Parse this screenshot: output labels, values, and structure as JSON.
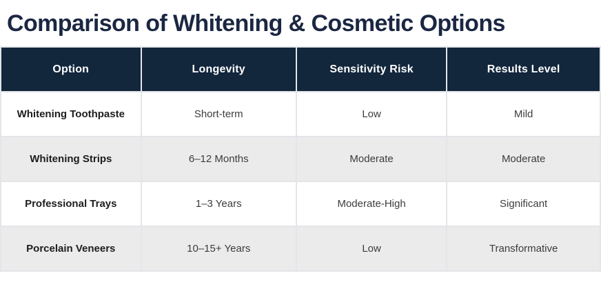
{
  "page": {
    "title": "Comparison of Whitening & Cosmetic Options"
  },
  "colors": {
    "title_text": "#1B2742",
    "header_bg": "#12263C",
    "header_text": "#FFFFFF",
    "row_bg": "#FFFFFF",
    "row_alt_bg": "#EBEBEB",
    "cell_border": "#E4E5E9"
  },
  "chart_data": {
    "type": "table",
    "title": "Comparison of Whitening & Cosmetic Options",
    "columns": [
      "Option",
      "Longevity",
      "Sensitivity Risk",
      "Results Level"
    ],
    "rows": [
      [
        "Whitening Toothpaste",
        "Short-term",
        "Low",
        "Mild"
      ],
      [
        "Whitening Strips",
        "6–12 Months",
        "Moderate",
        "Moderate"
      ],
      [
        "Professional Trays",
        "1–3 Years",
        "Moderate-High",
        "Significant"
      ],
      [
        "Porcelain Veneers",
        "10–15+ Years",
        "Low",
        "Transformative"
      ]
    ]
  }
}
